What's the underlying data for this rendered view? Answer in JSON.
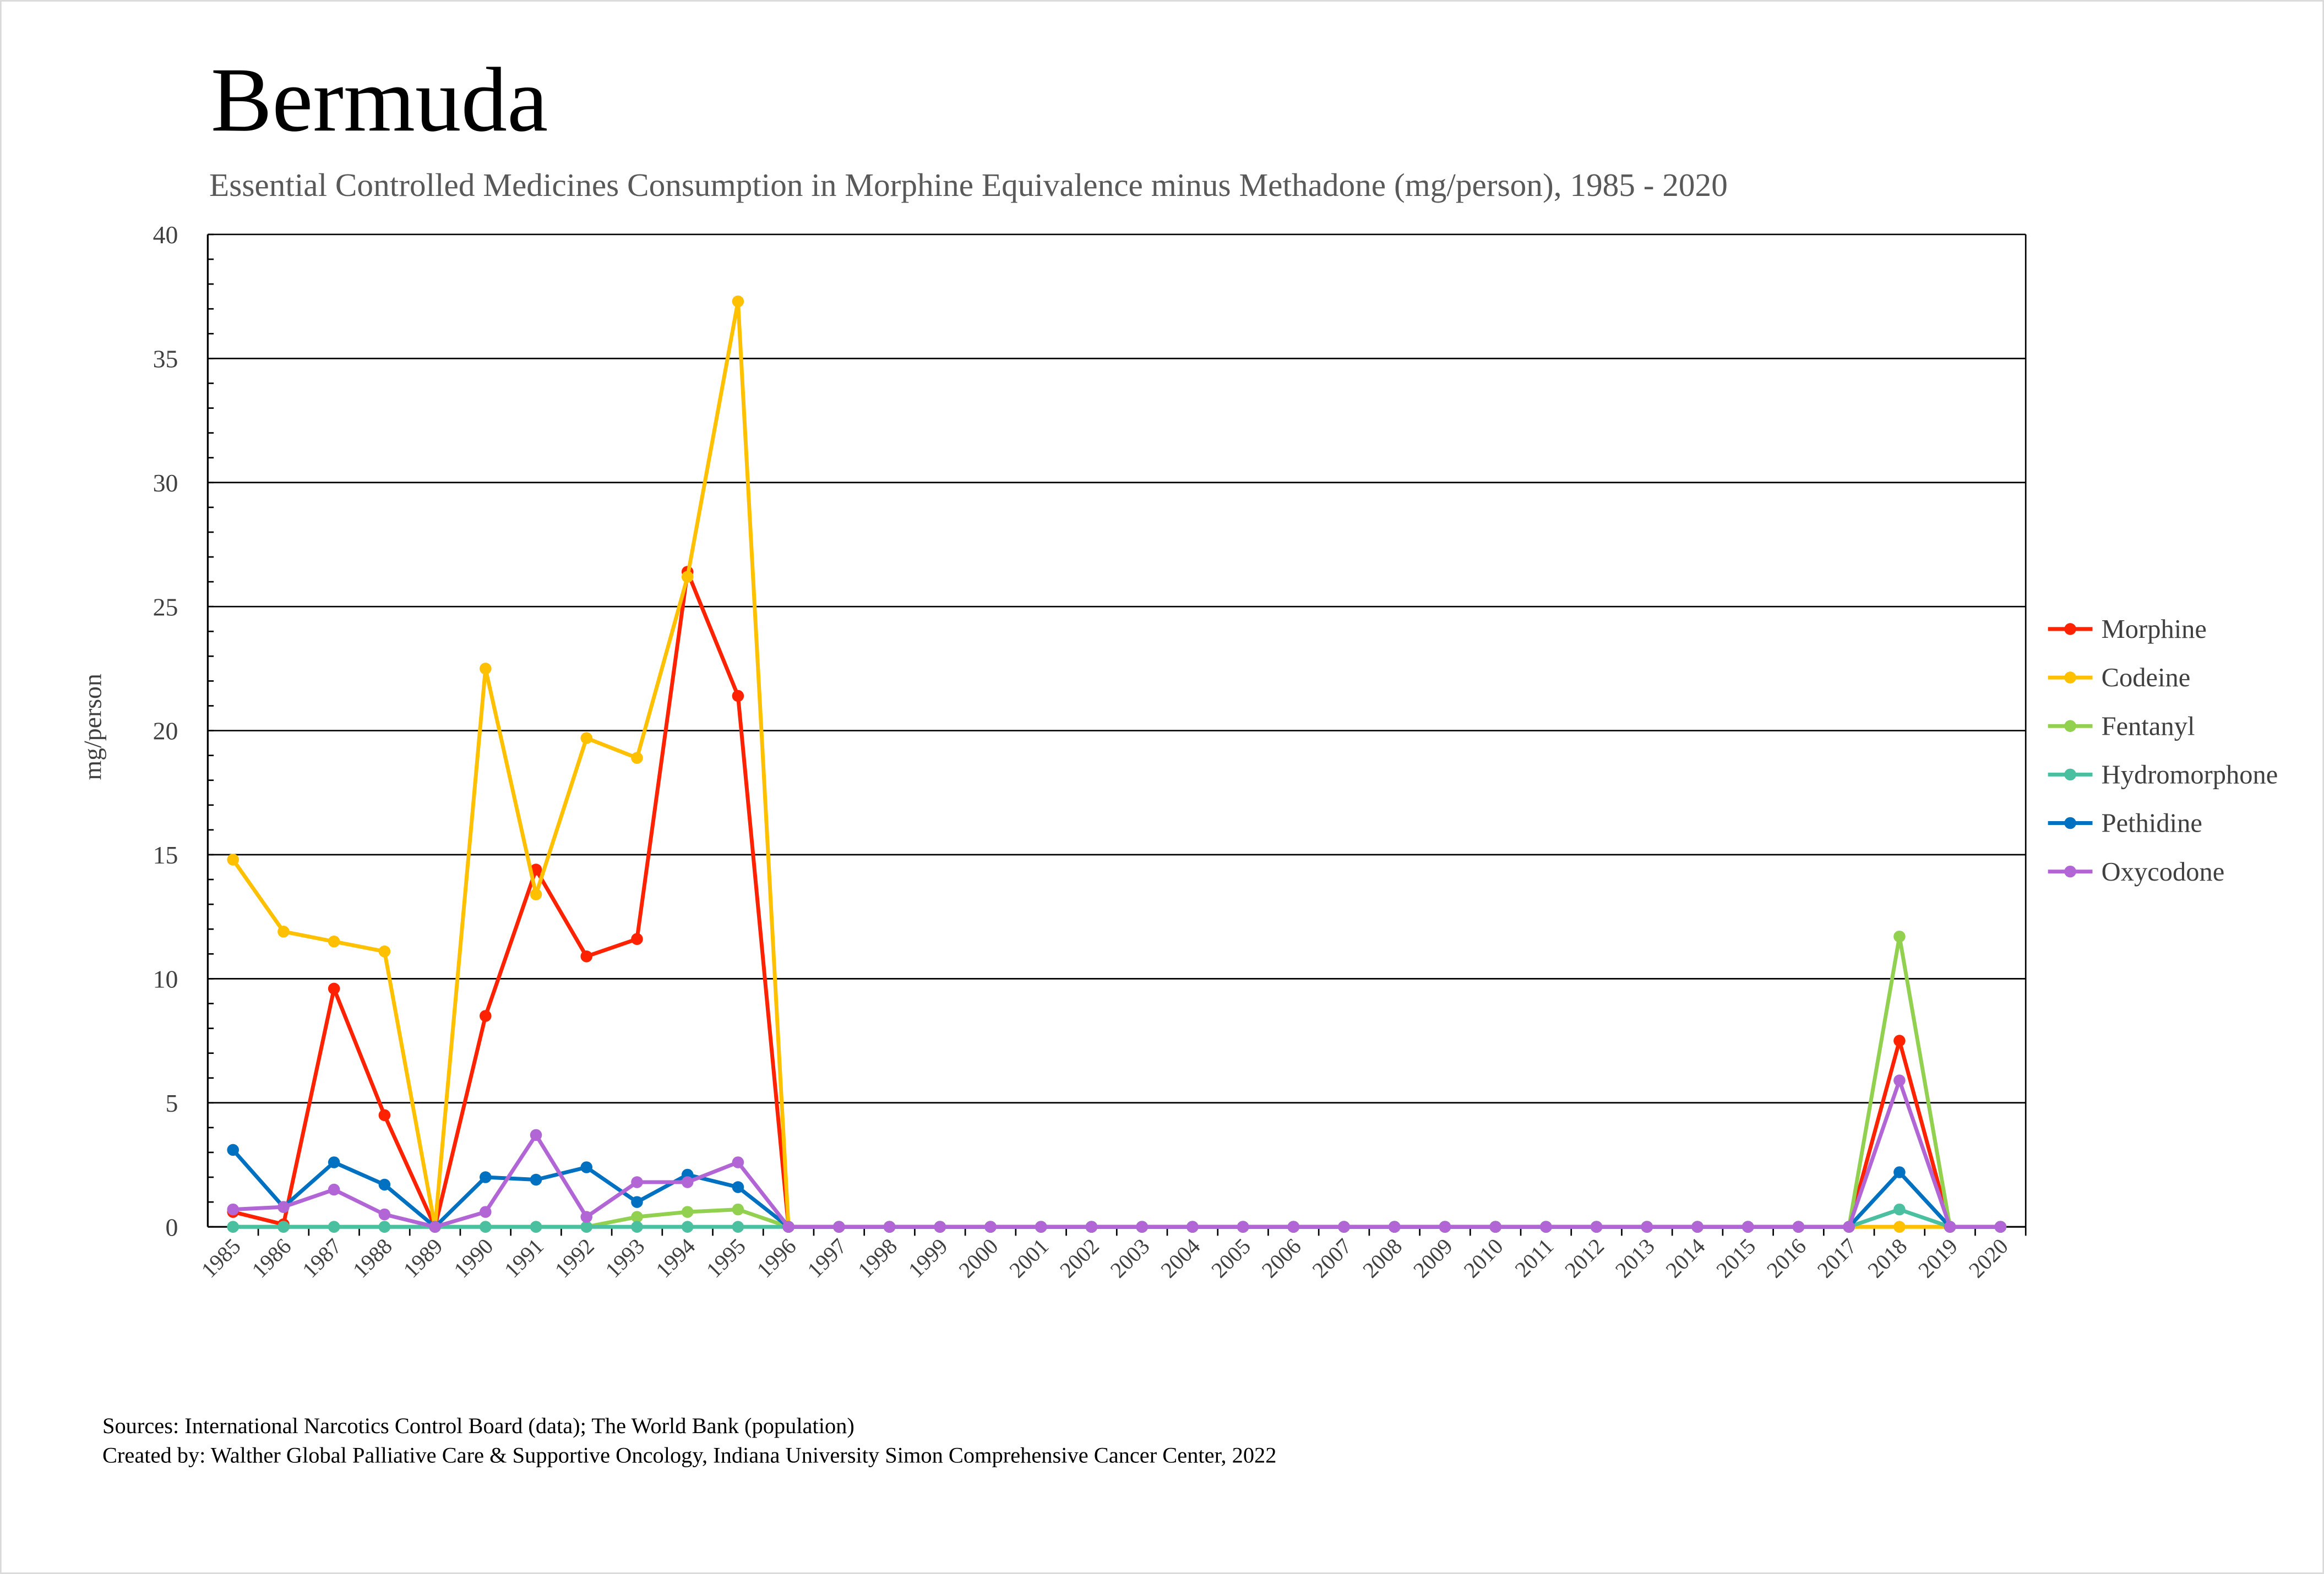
{
  "chart_data": {
    "type": "line",
    "title": "Bermuda",
    "subtitle": "Essential Controlled Medicines Consumption in Morphine Equivalence minus Methadone (mg/person), 1985 - 2020",
    "xlabel": "",
    "ylabel": "mg/person",
    "ylim": [
      0,
      40
    ],
    "yticks": [
      0,
      5,
      10,
      15,
      20,
      25,
      30,
      35,
      40
    ],
    "grid": true,
    "legend_position": "right",
    "x": [
      "1985",
      "1986",
      "1987",
      "1988",
      "1989",
      "1990",
      "1991",
      "1992",
      "1993",
      "1994",
      "1995",
      "1996",
      "1997",
      "1998",
      "1999",
      "2000",
      "2001",
      "2002",
      "2003",
      "2004",
      "2005",
      "2006",
      "2007",
      "2008",
      "2009",
      "2010",
      "2011",
      "2012",
      "2013",
      "2014",
      "2015",
      "2016",
      "2017",
      "2018",
      "2019",
      "2020"
    ],
    "series": [
      {
        "name": "Morphine",
        "color": "#FF2200",
        "values": [
          0.6,
          0.1,
          9.6,
          4.5,
          0,
          8.5,
          14.4,
          10.9,
          11.6,
          26.4,
          21.4,
          0,
          0,
          0,
          0,
          0,
          0,
          0,
          0,
          0,
          0,
          0,
          0,
          0,
          0,
          0,
          0,
          0,
          0,
          0,
          0,
          0,
          0,
          7.5,
          0,
          0
        ]
      },
      {
        "name": "Codeine",
        "color": "#FFC000",
        "values": [
          14.8,
          11.9,
          11.5,
          11.1,
          0,
          22.5,
          13.4,
          19.7,
          18.9,
          26.2,
          37.3,
          0,
          0,
          0,
          0,
          0,
          0,
          0,
          0,
          0,
          0,
          0,
          0,
          0,
          0,
          0,
          0,
          0,
          0,
          0,
          0,
          0,
          0,
          0,
          0,
          0
        ]
      },
      {
        "name": "Fentanyl",
        "color": "#92D050",
        "values": [
          0,
          0,
          0,
          0,
          0,
          0,
          0,
          0,
          0.4,
          0.6,
          0.7,
          0,
          0,
          0,
          0,
          0,
          0,
          0,
          0,
          0,
          0,
          0,
          0,
          0,
          0,
          0,
          0,
          0,
          0,
          0,
          0,
          0,
          0,
          11.7,
          0,
          0
        ]
      },
      {
        "name": "Hydromorphone",
        "color": "#4BC0A0",
        "values": [
          0,
          0,
          0,
          0,
          0,
          0,
          0,
          0,
          0,
          0,
          0,
          0,
          0,
          0,
          0,
          0,
          0,
          0,
          0,
          0,
          0,
          0,
          0,
          0,
          0,
          0,
          0,
          0,
          0,
          0,
          0,
          0,
          0,
          0.7,
          0,
          0
        ]
      },
      {
        "name": "Pethidine",
        "color": "#0070C0",
        "values": [
          3.1,
          0.8,
          2.6,
          1.7,
          0,
          2.0,
          1.9,
          2.4,
          1.0,
          2.1,
          1.6,
          0,
          0,
          0,
          0,
          0,
          0,
          0,
          0,
          0,
          0,
          0,
          0,
          0,
          0,
          0,
          0,
          0,
          0,
          0,
          0,
          0,
          0,
          2.2,
          0,
          0
        ]
      },
      {
        "name": "Oxycodone",
        "color": "#B266D6",
        "values": [
          0.7,
          0.8,
          1.5,
          0.5,
          0,
          0.6,
          3.7,
          0.4,
          1.8,
          1.8,
          2.6,
          0,
          0,
          0,
          0,
          0,
          0,
          0,
          0,
          0,
          0,
          0,
          0,
          0,
          0,
          0,
          0,
          0,
          0,
          0,
          0,
          0,
          0,
          5.9,
          0,
          0
        ]
      }
    ]
  },
  "footer": {
    "sources": "Sources: International Narcotics Control Board (data); The World Bank (population)",
    "created_by": "Created by: Walther Global Palliative Care & Supportive Oncology, Indiana University Simon Comprehensive Cancer Center, 2022"
  }
}
